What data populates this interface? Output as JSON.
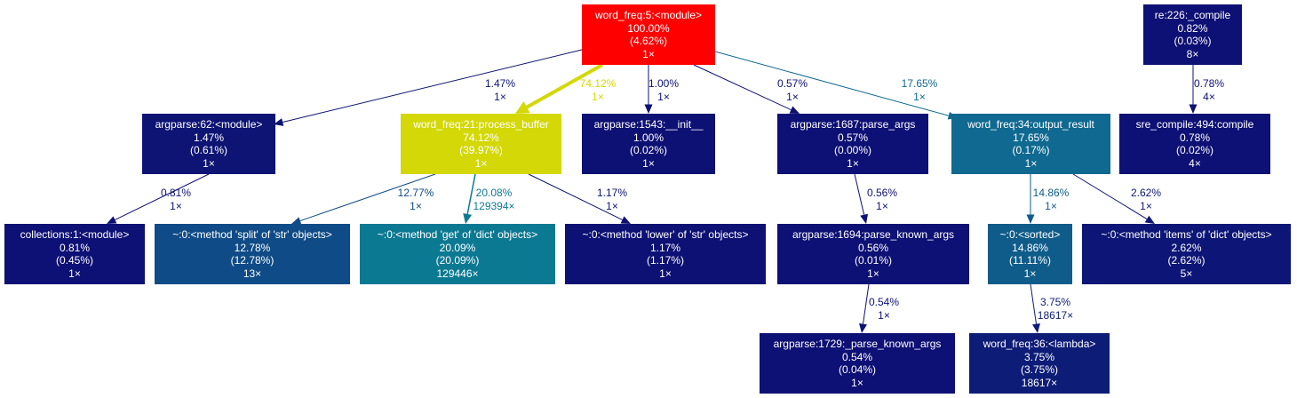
{
  "nodes": [
    {
      "id": "main",
      "lines": [
        "word_freq:5:<module>",
        "100.00%",
        "(4.62%)",
        "1×"
      ],
      "color": "#ff0000"
    },
    {
      "id": "re_compile",
      "lines": [
        "re:226:_compile",
        "0.82%",
        "(0.03%)",
        "8×"
      ],
      "color": "#0d1074"
    },
    {
      "id": "argparse62",
      "lines": [
        "argparse:62:<module>",
        "1.47%",
        "(0.61%)",
        "1×"
      ],
      "color": "#0d1474"
    },
    {
      "id": "process_buffer",
      "lines": [
        "word_freq:21:process_buffer",
        "74.12%",
        "(39.97%)",
        "1×"
      ],
      "color": "#d3d806"
    },
    {
      "id": "argparse_init",
      "lines": [
        "argparse:1543:__init__",
        "1.00%",
        "(0.02%)",
        "1×"
      ],
      "color": "#0d1174"
    },
    {
      "id": "parse_args",
      "lines": [
        "argparse:1687:parse_args",
        "0.57%",
        "(0.00%)",
        "1×"
      ],
      "color": "#0d1074"
    },
    {
      "id": "output_result",
      "lines": [
        "word_freq:34:output_result",
        "17.65%",
        "(0.17%)",
        "1×"
      ],
      "color": "#0f6990"
    },
    {
      "id": "sre_compile",
      "lines": [
        "sre_compile:494:compile",
        "0.78%",
        "(0.02%)",
        "4×"
      ],
      "color": "#0d1074"
    },
    {
      "id": "collections",
      "lines": [
        "collections:1:<module>",
        "0.81%",
        "(0.45%)",
        "1×"
      ],
      "color": "#0d1074"
    },
    {
      "id": "split",
      "lines": [
        "~:0:<method 'split' of 'str' objects>",
        "12.78%",
        "(12.78%)",
        "13×"
      ],
      "color": "#0f4b86"
    },
    {
      "id": "get",
      "lines": [
        "~:0:<method 'get' of 'dict' objects>",
        "20.09%",
        "(20.09%)",
        "129446×"
      ],
      "color": "#0c7993"
    },
    {
      "id": "lower",
      "lines": [
        "~:0:<method 'lower' of 'str' objects>",
        "1.17%",
        "(1.17%)",
        "1×"
      ],
      "color": "#0d1174"
    },
    {
      "id": "parse_known_args",
      "lines": [
        "argparse:1694:parse_known_args",
        "0.56%",
        "(0.01%)",
        "1×"
      ],
      "color": "#0d1074"
    },
    {
      "id": "sorted",
      "lines": [
        "~:0:<sorted>",
        "14.86%",
        "(11.11%)",
        "1×"
      ],
      "color": "#0f5c8a"
    },
    {
      "id": "items",
      "lines": [
        "~:0:<method 'items' of 'dict' objects>",
        "2.62%",
        "(2.62%)",
        "5×"
      ],
      "color": "#0d1676"
    },
    {
      "id": "_parse_known_args",
      "lines": [
        "argparse:1729:_parse_known_args",
        "0.54%",
        "(0.04%)",
        "1×"
      ],
      "color": "#0d1074"
    },
    {
      "id": "lambda",
      "lines": [
        "word_freq:36:<lambda>",
        "3.75%",
        "(3.75%)",
        "18617×"
      ],
      "color": "#0d1c77"
    }
  ],
  "edges": [
    {
      "from": "main",
      "to": "argparse62",
      "lines": [
        "1.47%",
        "1×"
      ],
      "color": "#0d1474"
    },
    {
      "from": "main",
      "to": "process_buffer",
      "lines": [
        "74.12%",
        "1×"
      ],
      "color": "#d3d806"
    },
    {
      "from": "main",
      "to": "argparse_init",
      "lines": [
        "1.00%",
        "1×"
      ],
      "color": "#0d1174"
    },
    {
      "from": "main",
      "to": "parse_args",
      "lines": [
        "0.57%",
        "1×"
      ],
      "color": "#0d1074"
    },
    {
      "from": "main",
      "to": "output_result",
      "lines": [
        "17.65%",
        "1×"
      ],
      "color": "#0f6990"
    },
    {
      "from": "re_compile",
      "to": "sre_compile",
      "lines": [
        "0.78%",
        "4×"
      ],
      "color": "#0d1074"
    },
    {
      "from": "argparse62",
      "to": "collections",
      "lines": [
        "0.81%",
        "1×"
      ],
      "color": "#0d1074"
    },
    {
      "from": "process_buffer",
      "to": "split",
      "lines": [
        "12.77%",
        "1×"
      ],
      "color": "#0f4b86"
    },
    {
      "from": "process_buffer",
      "to": "get",
      "lines": [
        "20.08%",
        "129394×"
      ],
      "color": "#0c7993"
    },
    {
      "from": "process_buffer",
      "to": "lower",
      "lines": [
        "1.17%",
        "1×"
      ],
      "color": "#0d1174"
    },
    {
      "from": "parse_args",
      "to": "parse_known_args",
      "lines": [
        "0.56%",
        "1×"
      ],
      "color": "#0d1074"
    },
    {
      "from": "output_result",
      "to": "sorted",
      "lines": [
        "14.86%",
        "1×"
      ],
      "color": "#0f5c8a"
    },
    {
      "from": "output_result",
      "to": "items",
      "lines": [
        "2.62%",
        "1×"
      ],
      "color": "#0d1676"
    },
    {
      "from": "parse_known_args",
      "to": "_parse_known_args",
      "lines": [
        "0.54%",
        "1×"
      ],
      "color": "#0d1074"
    },
    {
      "from": "sorted",
      "to": "lambda",
      "lines": [
        "3.75%",
        "18617×"
      ],
      "color": "#0d1c77"
    }
  ]
}
